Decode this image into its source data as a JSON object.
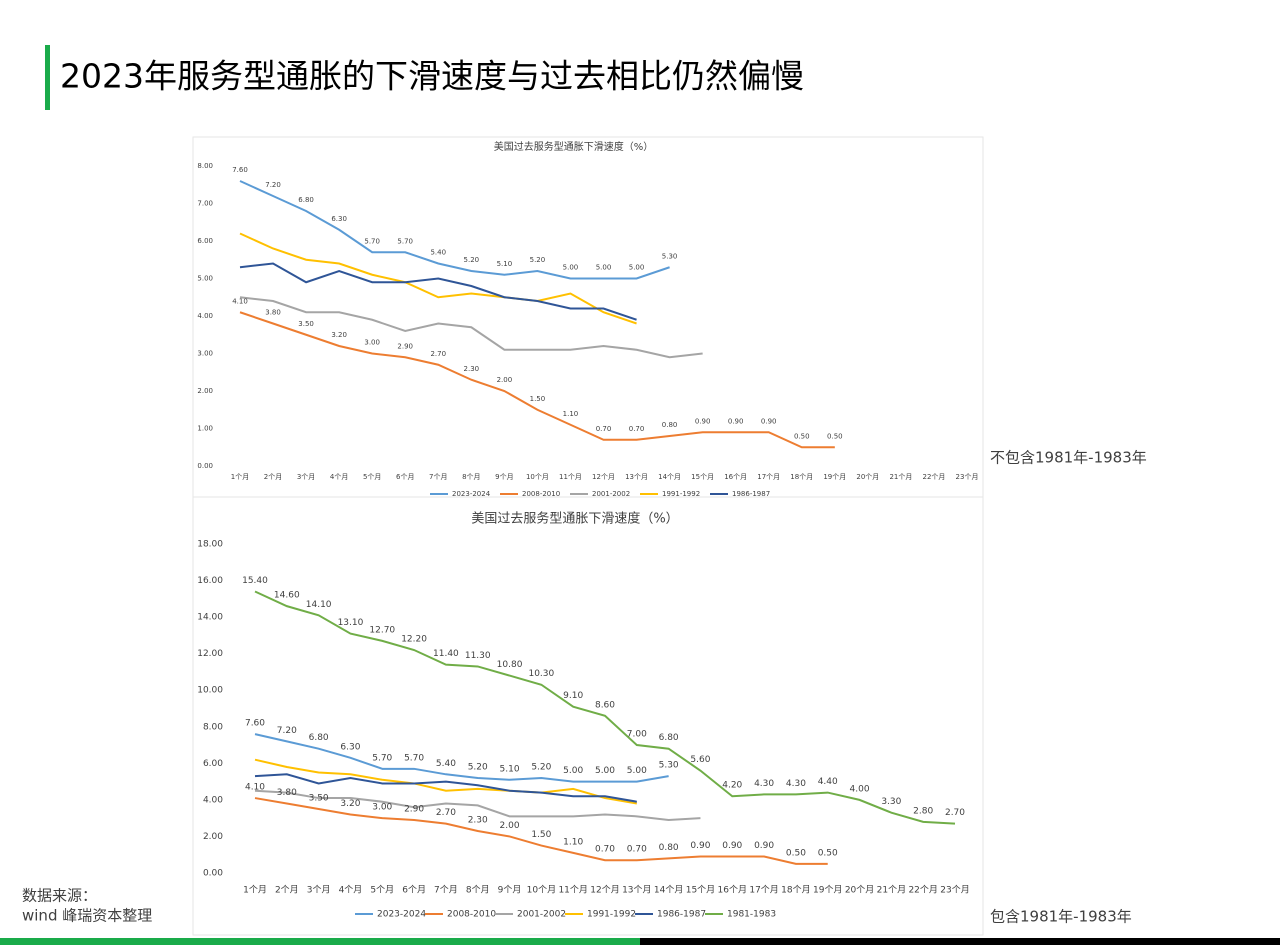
{
  "header": {
    "title": "2023年服务型通胀的下滑速度与过去相比仍然偏慢"
  },
  "notes": {
    "top": "不包含1981年-1983年",
    "bottom": "包含1981年-1983年",
    "source": [
      "数据来源：",
      "wind 峰瑞资本整理"
    ]
  },
  "chart_data": [
    {
      "type": "line",
      "title": "美国过去服务型通胀下滑速度（%）",
      "categories": [
        "1个月",
        "2个月",
        "3个月",
        "4个月",
        "5个月",
        "6个月",
        "7个月",
        "8个月",
        "9个月",
        "10个月",
        "11个月",
        "12个月",
        "13个月",
        "14个月",
        "15个月",
        "16个月",
        "17个月",
        "18个月",
        "19个月",
        "20个月",
        "21个月",
        "22个月",
        "23个月"
      ],
      "ylim": [
        0,
        8
      ],
      "yticks": [
        {
          "value": 0,
          "label": "0.00"
        },
        {
          "value": 1,
          "label": "1.00"
        },
        {
          "value": 2,
          "label": "2.00"
        },
        {
          "value": 3,
          "label": "3.00"
        },
        {
          "value": 4,
          "label": "4.00"
        },
        {
          "value": 5,
          "label": "5.00"
        },
        {
          "value": 6,
          "label": "6.00"
        },
        {
          "value": 7,
          "label": "7.00"
        },
        {
          "value": 8,
          "label": "8.00"
        }
      ],
      "series": [
        {
          "name": "2023-2024",
          "color": "#5b9bd5",
          "values": [
            7.6,
            7.2,
            6.8,
            6.3,
            5.7,
            5.7,
            5.4,
            5.2,
            5.1,
            5.2,
            5.0,
            5.0,
            5.0,
            5.3,
            null,
            null,
            null,
            null,
            null,
            null,
            null,
            null,
            null
          ],
          "value_labels": [
            "7.60",
            "7.20",
            "6.80",
            "6.30",
            "5.70",
            "5.70",
            "5.40",
            "5.20",
            "5.10",
            "5.20",
            "5.00",
            "5.00",
            "5.00",
            "5.30",
            null,
            null,
            null,
            null,
            null,
            null,
            null,
            null,
            null
          ]
        },
        {
          "name": "2008-2010",
          "color": "#ed7d31",
          "values": [
            4.1,
            3.8,
            3.5,
            3.2,
            3.0,
            2.9,
            2.7,
            2.3,
            2.0,
            1.5,
            1.1,
            0.7,
            0.7,
            0.8,
            0.9,
            0.9,
            0.9,
            0.5,
            0.5,
            null,
            null,
            null,
            null
          ],
          "value_labels": [
            "4.10",
            "3.80",
            "3.50",
            "3.20",
            "3.00",
            "2.90",
            "2.70",
            "2.30",
            "2.00",
            "1.50",
            "1.10",
            "0.70",
            "0.70",
            "0.80",
            "0.90",
            "0.90",
            "0.90",
            "0.50",
            "0.50",
            null,
            null,
            null,
            null
          ]
        },
        {
          "name": "2001-2002",
          "color": "#a5a5a5",
          "values": [
            4.5,
            4.4,
            4.1,
            4.1,
            3.9,
            3.6,
            3.8,
            3.7,
            3.1,
            3.1,
            3.1,
            3.2,
            3.1,
            2.9,
            3.0,
            null,
            null,
            null,
            null,
            null,
            null,
            null,
            null
          ]
        },
        {
          "name": "1991-1992",
          "color": "#ffc000",
          "values": [
            6.2,
            5.8,
            5.5,
            5.4,
            5.1,
            4.9,
            4.5,
            4.6,
            4.5,
            4.4,
            4.6,
            4.1,
            3.8,
            null,
            null,
            null,
            null,
            null,
            null,
            null,
            null,
            null,
            null
          ]
        },
        {
          "name": "1986-1987",
          "color": "#2f5597",
          "values": [
            5.3,
            5.4,
            4.9,
            5.2,
            4.9,
            4.9,
            5.0,
            4.8,
            4.5,
            4.4,
            4.2,
            4.2,
            3.9,
            null,
            null,
            null,
            null,
            null,
            null,
            null,
            null,
            null,
            null
          ]
        }
      ]
    },
    {
      "type": "line",
      "title": "美国过去服务型通胀下滑速度（%）",
      "categories": [
        "1个月",
        "2个月",
        "3个月",
        "4个月",
        "5个月",
        "6个月",
        "7个月",
        "8个月",
        "9个月",
        "10个月",
        "11个月",
        "12个月",
        "13个月",
        "14个月",
        "15个月",
        "16个月",
        "17个月",
        "18个月",
        "19个月",
        "20个月",
        "21个月",
        "22个月",
        "23个月"
      ],
      "ylim": [
        0,
        18
      ],
      "yticks": [
        {
          "value": 0,
          "label": "0.00"
        },
        {
          "value": 2,
          "label": "2.00"
        },
        {
          "value": 4,
          "label": "4.00"
        },
        {
          "value": 6,
          "label": "6.00"
        },
        {
          "value": 8,
          "label": "8.00"
        },
        {
          "value": 10,
          "label": "10.00"
        },
        {
          "value": 12,
          "label": "12.00"
        },
        {
          "value": 14,
          "label": "14.00"
        },
        {
          "value": 16,
          "label": "16.00"
        },
        {
          "value": 18,
          "label": "18.00"
        }
      ],
      "series": [
        {
          "name": "2023-2024",
          "color": "#5b9bd5",
          "values": [
            7.6,
            7.2,
            6.8,
            6.3,
            5.7,
            5.7,
            5.4,
            5.2,
            5.1,
            5.2,
            5.0,
            5.0,
            5.0,
            5.3,
            null,
            null,
            null,
            null,
            null,
            null,
            null,
            null,
            null
          ],
          "value_labels": [
            "7.60",
            "7.20",
            "6.80",
            "6.30",
            "5.70",
            "5.70",
            "5.40",
            "5.20",
            "5.10",
            "5.20",
            "5.00",
            "5.00",
            "5.00",
            "5.30",
            null,
            null,
            null,
            null,
            null,
            null,
            null,
            null,
            null
          ]
        },
        {
          "name": "2008-2010",
          "color": "#ed7d31",
          "values": [
            4.1,
            3.8,
            3.5,
            3.2,
            3.0,
            2.9,
            2.7,
            2.3,
            2.0,
            1.5,
            1.1,
            0.7,
            0.7,
            0.8,
            0.9,
            0.9,
            0.9,
            0.5,
            0.5,
            null,
            null,
            null,
            null
          ],
          "value_labels": [
            "4.10",
            "3.80",
            "3.50",
            "3.20",
            "3.00",
            "2.90",
            "2.70",
            "2.30",
            "2.00",
            "1.50",
            "1.10",
            "0.70",
            "0.70",
            "0.80",
            "0.90",
            "0.90",
            "0.90",
            "0.50",
            "0.50",
            null,
            null,
            null,
            null
          ]
        },
        {
          "name": "2001-2002",
          "color": "#a5a5a5",
          "values": [
            4.5,
            4.4,
            4.1,
            4.1,
            3.9,
            3.6,
            3.8,
            3.7,
            3.1,
            3.1,
            3.1,
            3.2,
            3.1,
            2.9,
            3.0,
            null,
            null,
            null,
            null,
            null,
            null,
            null,
            null
          ]
        },
        {
          "name": "1991-1992",
          "color": "#ffc000",
          "values": [
            6.2,
            5.8,
            5.5,
            5.4,
            5.1,
            4.9,
            4.5,
            4.6,
            4.5,
            4.4,
            4.6,
            4.1,
            3.8,
            null,
            null,
            null,
            null,
            null,
            null,
            null,
            null,
            null,
            null
          ]
        },
        {
          "name": "1986-1987",
          "color": "#2f5597",
          "values": [
            5.3,
            5.4,
            4.9,
            5.2,
            4.9,
            4.9,
            5.0,
            4.8,
            4.5,
            4.4,
            4.2,
            4.2,
            3.9,
            null,
            null,
            null,
            null,
            null,
            null,
            null,
            null,
            null,
            null
          ]
        },
        {
          "name": "1981-1983",
          "color": "#70ad47",
          "values": [
            15.4,
            14.6,
            14.1,
            13.1,
            12.7,
            12.2,
            11.4,
            11.3,
            10.8,
            10.3,
            9.1,
            8.6,
            7.0,
            6.8,
            5.6,
            4.2,
            4.3,
            4.3,
            4.4,
            4.0,
            3.3,
            2.8,
            2.7
          ],
          "value_labels": [
            "15.40",
            "14.60",
            "14.10",
            "13.10",
            "12.70",
            "12.20",
            "11.40",
            "11.30",
            "10.80",
            "10.30",
            "9.10",
            "8.60",
            "7.00",
            "6.80",
            "5.60",
            "4.20",
            "4.30",
            "4.30",
            "4.40",
            "4.00",
            "3.30",
            "2.80",
            "2.70"
          ]
        }
      ]
    }
  ]
}
